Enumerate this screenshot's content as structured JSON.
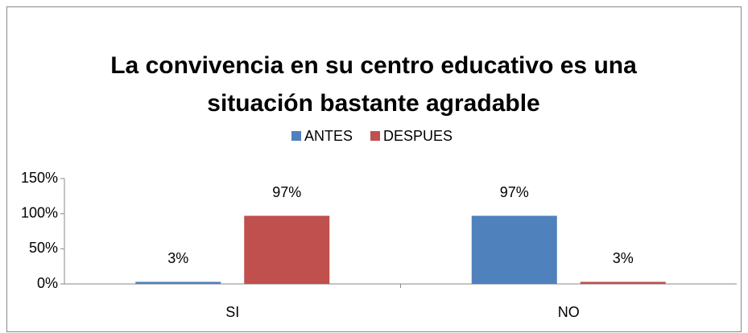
{
  "chart_data": {
    "type": "bar",
    "title": "La convivencia en su centro educativo es una situación bastante agradable",
    "categories": [
      "SI",
      "NO"
    ],
    "series": [
      {
        "name": "ANTES",
        "color": "#4f81bd",
        "values": [
          3,
          97
        ],
        "value_labels": [
          "3%",
          "97%"
        ]
      },
      {
        "name": "DESPUES",
        "color": "#c0504d",
        "values": [
          97,
          3
        ],
        "value_labels": [
          "97%",
          "3%"
        ]
      }
    ],
    "ylim": [
      0,
      150
    ],
    "yticks": [
      {
        "value": 0,
        "label": "0%"
      },
      {
        "value": 50,
        "label": "50%"
      },
      {
        "value": 100,
        "label": "100%"
      },
      {
        "value": 150,
        "label": "150%"
      }
    ],
    "legend": "top"
  }
}
